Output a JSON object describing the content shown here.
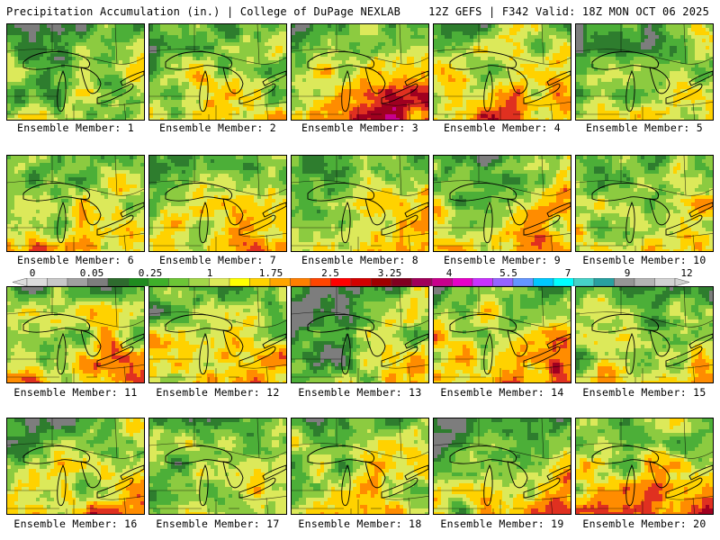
{
  "header": {
    "left": "Precipitation Accumulation (in.) | College of DuPage NEXLAB",
    "right": "12Z GEFS | F342 Valid: 18Z MON OCT 06 2025"
  },
  "panels": [
    {
      "label": "Ensemble Member: 1"
    },
    {
      "label": "Ensemble Member: 2"
    },
    {
      "label": "Ensemble Member: 3"
    },
    {
      "label": "Ensemble Member: 4"
    },
    {
      "label": "Ensemble Member: 5"
    },
    {
      "label": "Ensemble Member: 6"
    },
    {
      "label": "Ensemble Member: 7"
    },
    {
      "label": "Ensemble Member: 8"
    },
    {
      "label": "Ensemble Member: 9"
    },
    {
      "label": "Ensemble Member: 10"
    },
    {
      "label": "Ensemble Member: 11"
    },
    {
      "label": "Ensemble Member: 12"
    },
    {
      "label": "Ensemble Member: 13"
    },
    {
      "label": "Ensemble Member: 14"
    },
    {
      "label": "Ensemble Member: 15"
    },
    {
      "label": "Ensemble Member: 16"
    },
    {
      "label": "Ensemble Member: 17"
    },
    {
      "label": "Ensemble Member: 18"
    },
    {
      "label": "Ensemble Member: 19"
    },
    {
      "label": "Ensemble Member: 20"
    }
  ],
  "colorbar": {
    "labels": [
      "0",
      "0.05",
      "0.25",
      "1",
      "1.75",
      "2.5",
      "3.25",
      "4",
      "5.5",
      "7",
      "9",
      "12"
    ],
    "colors": [
      "#dcdcdc",
      "#c8c8c8",
      "#a0a0a0",
      "#7d7d7d",
      "#2e6b2e",
      "#1f8b1f",
      "#3fb02a",
      "#6cc536",
      "#a3d649",
      "#dce95a",
      "#ffff00",
      "#ffd200",
      "#ffa500",
      "#ff7f00",
      "#ff4500",
      "#ff0000",
      "#d20000",
      "#a00000",
      "#800020",
      "#a0005a",
      "#c8008c",
      "#e600c8",
      "#c832ff",
      "#9664ff",
      "#6496ff",
      "#00c8ff",
      "#00ffff",
      "#46d2c8",
      "#28a0a0",
      "#969696",
      "#b4b4b4",
      "#d2d2d2"
    ]
  },
  "colors": {
    "scale": [
      "#7d7d7d",
      "#2e7d2e",
      "#4caf38",
      "#8ccb40",
      "#dce95a",
      "#ffd200",
      "#ff8c00",
      "#e03020",
      "#a00020",
      "#c8008c",
      "#40e0e0"
    ]
  }
}
